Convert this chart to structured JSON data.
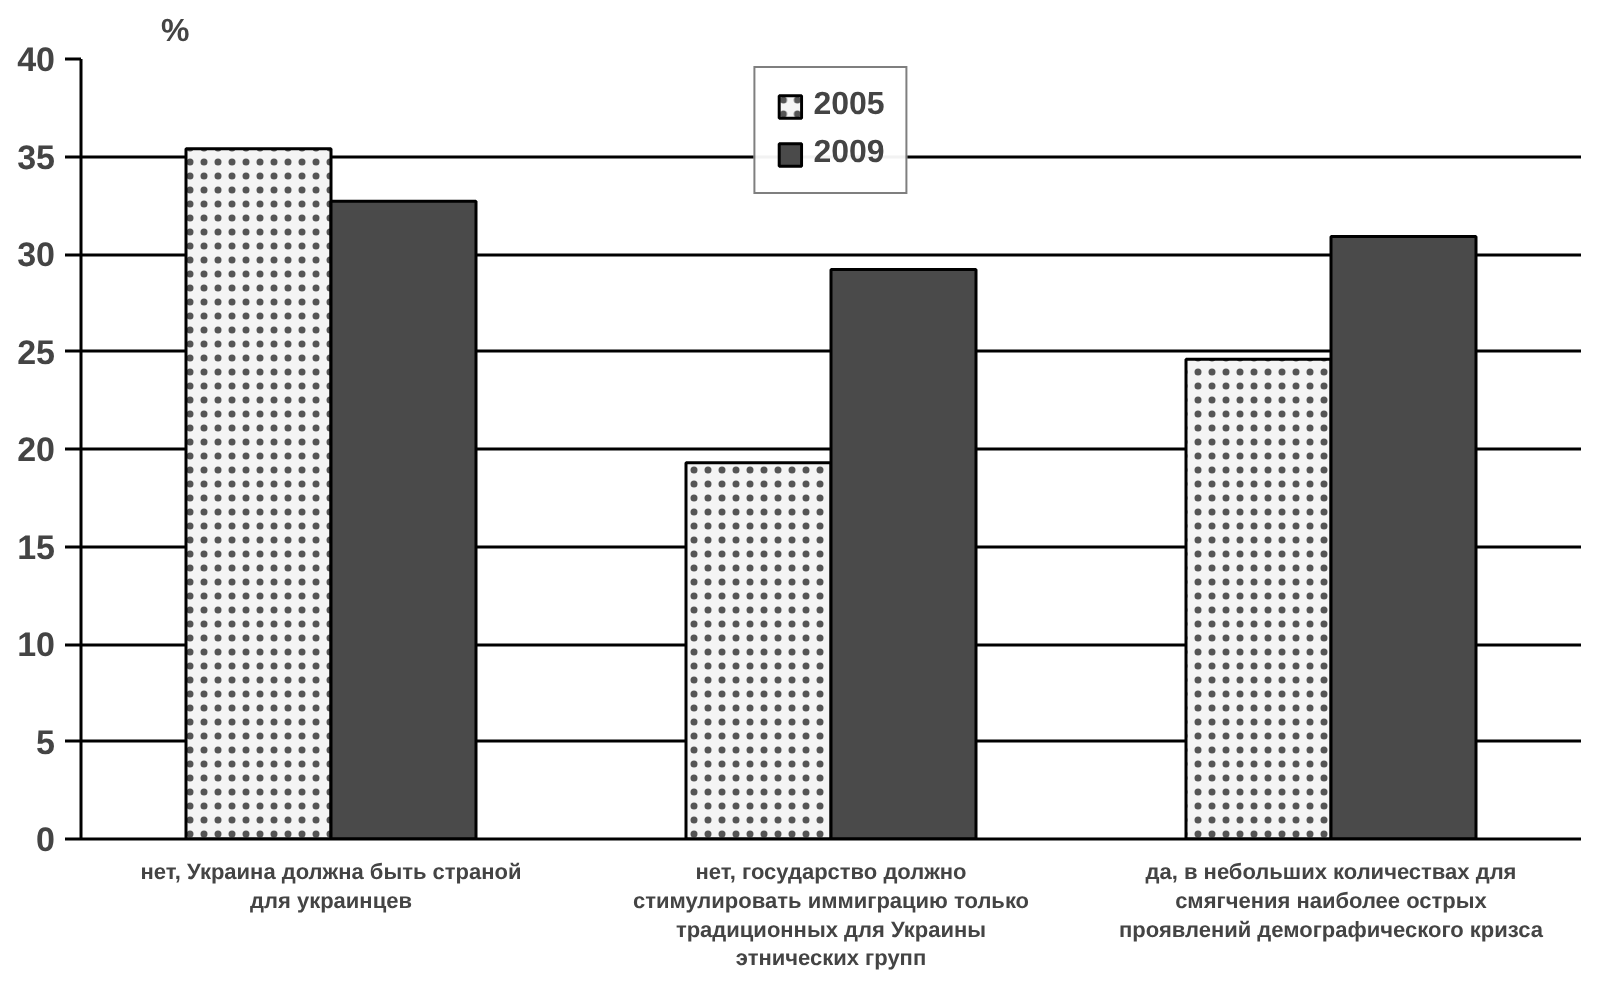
{
  "chart_data": {
    "type": "bar",
    "ylabel": "%",
    "categories": [
      "нет, Украина должна быть страной для украинцев",
      "нет, государство должно стимулировать иммиграцию только традиционных для Украины этнических групп",
      "да, в небольших количествах для смягчения наиболее острых проявлений демографического кризса"
    ],
    "series": [
      {
        "name": "2005",
        "color": "#f4f4f4",
        "values": [
          35.4,
          19.3,
          24.6
        ]
      },
      {
        "name": "2009",
        "color": "#4a4a4a",
        "values": [
          32.7,
          29.2,
          30.9
        ]
      }
    ],
    "ylim": [
      0,
      40
    ],
    "yticks": [
      0,
      5,
      10,
      15,
      20,
      25,
      30,
      35,
      40
    ],
    "grid": "y",
    "legend": "top"
  }
}
